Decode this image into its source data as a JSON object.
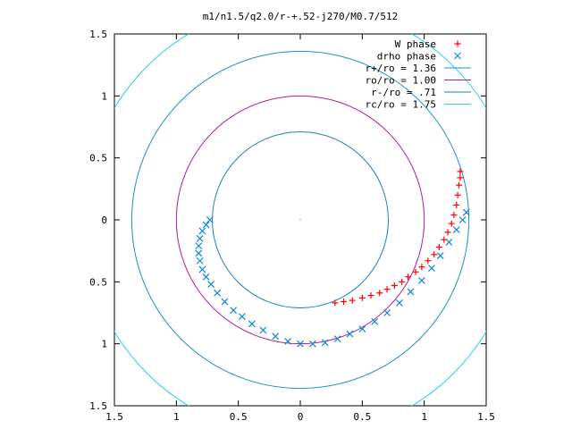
{
  "chart_data": {
    "type": "scatter",
    "title": "m1/n1.5/q2.0/r-+.52-j270/M0.7/512",
    "xlabel": "",
    "ylabel": "",
    "xlim": [
      -1.5,
      1.5
    ],
    "ylim": [
      -1.5,
      1.5
    ],
    "x_ticks": [
      "1.5",
      "1",
      "0.5",
      "0",
      "0.5",
      "1",
      "1.5"
    ],
    "y_ticks": [
      "1.5",
      "1",
      "0.5",
      "0",
      "0.5",
      "1",
      "1.5"
    ],
    "legend_position": "top-right",
    "grid": false,
    "series": [
      {
        "name": "W phase",
        "kind": "points",
        "marker": "+",
        "color": "#ff0000",
        "points": [
          [
            0.28,
            -0.67
          ],
          [
            0.35,
            -0.66
          ],
          [
            0.42,
            -0.65
          ],
          [
            0.5,
            -0.63
          ],
          [
            0.57,
            -0.61
          ],
          [
            0.64,
            -0.59
          ],
          [
            0.7,
            -0.56
          ],
          [
            0.76,
            -0.53
          ],
          [
            0.82,
            -0.5
          ],
          [
            0.87,
            -0.46
          ],
          [
            0.93,
            -0.42
          ],
          [
            0.98,
            -0.38
          ],
          [
            1.03,
            -0.33
          ],
          [
            1.08,
            -0.28
          ],
          [
            1.12,
            -0.22
          ],
          [
            1.16,
            -0.16
          ],
          [
            1.19,
            -0.1
          ],
          [
            1.22,
            -0.03
          ],
          [
            1.24,
            0.04
          ],
          [
            1.26,
            0.12
          ],
          [
            1.27,
            0.2
          ],
          [
            1.28,
            0.28
          ],
          [
            1.29,
            0.34
          ],
          [
            1.29,
            0.39
          ]
        ]
      },
      {
        "name": "drho phase",
        "kind": "points",
        "marker": "x",
        "color": "#0a87e0",
        "points": [
          [
            -0.73,
            0.0
          ],
          [
            -0.76,
            -0.04
          ],
          [
            -0.79,
            -0.09
          ],
          [
            -0.81,
            -0.15
          ],
          [
            -0.82,
            -0.21
          ],
          [
            -0.82,
            -0.27
          ],
          [
            -0.81,
            -0.33
          ],
          [
            -0.79,
            -0.4
          ],
          [
            -0.76,
            -0.46
          ],
          [
            -0.72,
            -0.52
          ],
          [
            -0.67,
            -0.59
          ],
          [
            -0.61,
            -0.66
          ],
          [
            -0.54,
            -0.73
          ],
          [
            -0.47,
            -0.78
          ],
          [
            -0.39,
            -0.84
          ],
          [
            -0.3,
            -0.89
          ],
          [
            -0.2,
            -0.94
          ],
          [
            -0.1,
            -0.98
          ],
          [
            0.0,
            -1.0
          ],
          [
            0.1,
            -1.0
          ],
          [
            0.2,
            -0.99
          ],
          [
            0.3,
            -0.96
          ],
          [
            0.4,
            -0.92
          ],
          [
            0.5,
            -0.88
          ],
          [
            0.6,
            -0.82
          ],
          [
            0.7,
            -0.75
          ],
          [
            0.8,
            -0.67
          ],
          [
            0.89,
            -0.58
          ],
          [
            0.98,
            -0.49
          ],
          [
            1.06,
            -0.39
          ],
          [
            1.13,
            -0.29
          ],
          [
            1.2,
            -0.18
          ],
          [
            1.26,
            -0.08
          ],
          [
            1.31,
            0.0
          ],
          [
            1.34,
            0.06
          ]
        ]
      },
      {
        "name": "r+/ro = 1.36",
        "kind": "circle",
        "radius": 1.36,
        "color": "#1b8fd6"
      },
      {
        "name": "ro/ro = 1.00",
        "kind": "circle",
        "radius": 1.0,
        "color": "#b5179e"
      },
      {
        "name": "r-/ro = .71",
        "kind": "circle",
        "radius": 0.71,
        "color": "#1b7fc2"
      },
      {
        "name": "rc/ro = 1.75",
        "kind": "circle",
        "radius": 1.75,
        "color": "#26d0e8"
      }
    ]
  }
}
